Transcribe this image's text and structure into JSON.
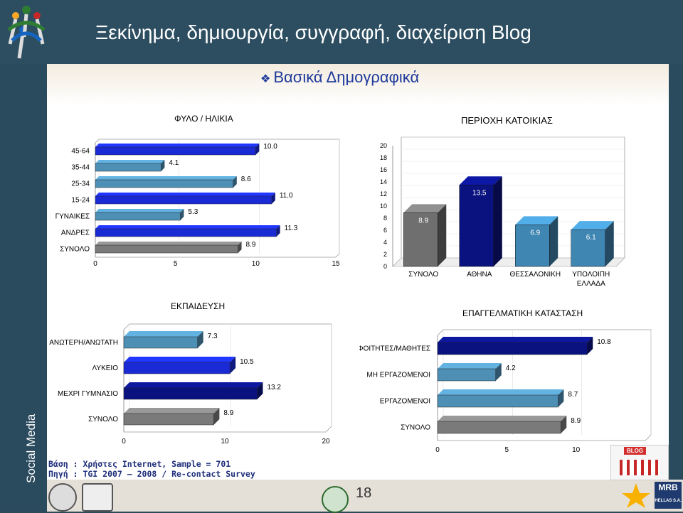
{
  "header": {
    "title": "Ξεκίνημα, δημιουργία, συγγραφή, διαχείριση Blog"
  },
  "subtitle": "Βασικά Δημογραφικά",
  "sidebar": {
    "label": "Social Media"
  },
  "footer": {
    "base": "Βάση : Χρήστες Internet, Sample = 701",
    "source": "Πηγή : TGI 2007 – 2008 / Re-contact Survey",
    "page_number": "18"
  },
  "colors": {
    "header": "#2d4e61",
    "blue": "#1a2bd6",
    "navy": "#0a1280",
    "grey": "#7a7a7a",
    "lightblue": "#4e8fb5"
  },
  "chart_data": [
    {
      "type": "bar",
      "orientation": "horizontal",
      "title": "ΦΥΛΟ / ΗΛΙΚΙΑ",
      "categories": [
        "45-64",
        "35-44",
        "25-34",
        "15-24",
        "ΓΥΝΑΙΚΕΣ",
        "ΑΝΔΡΕΣ",
        "ΣΥΝΟΛΟ"
      ],
      "values": [
        10.0,
        4.1,
        8.6,
        11.0,
        5.3,
        11.3,
        8.9
      ],
      "labels": [
        "10.0",
        "4.1",
        "8.6",
        "11.0",
        "5.3",
        "11.3",
        "8.9"
      ],
      "colors": [
        "#1a2bd6",
        "#4e8fb5",
        "#4e8fb5",
        "#1a2bd6",
        "#4e8fb5",
        "#1a2bd6",
        "#7a7a7a"
      ],
      "xlim": [
        0,
        15
      ],
      "xticks": [
        0,
        5,
        10,
        15
      ],
      "legend": "none"
    },
    {
      "type": "bar",
      "orientation": "vertical",
      "title": "ΠΕΡΙΟΧΗ ΚΑΤΟΙΚΙΑΣ",
      "categories": [
        "ΣΥΝΟΛΟ",
        "ΑΘΗΝΑ",
        "ΘΕΣΣΑΛΟΝΙΚΗ",
        "ΥΠΟΛΟΙΠΗ ΕΛΛΑΔΑ"
      ],
      "values": [
        8.9,
        13.5,
        6.9,
        6.1
      ],
      "labels": [
        "8.9",
        "13.5",
        "6.9",
        "6.1"
      ],
      "colors": [
        "#6f6f6f",
        "#0a1280",
        "#3f86b3",
        "#3f86b3"
      ],
      "ylim": [
        0,
        20
      ],
      "yticks": [
        0,
        2,
        4,
        6,
        8,
        10,
        12,
        14,
        16,
        18,
        20
      ],
      "legend": "none"
    },
    {
      "type": "bar",
      "orientation": "horizontal",
      "title": "ΕΚΠΑΙΔΕΥΣΗ",
      "categories": [
        "ΑΝΩΤΕΡΗ/ΑΝΩΤΑΤΗ",
        "ΛΥΚΕΙΟ",
        "ΜΕΧΡΙ ΓΥΜΝΑΣΙΟ",
        "ΣΥΝΟΛΟ"
      ],
      "values": [
        7.3,
        10.5,
        13.2,
        8.9
      ],
      "labels": [
        "7.3",
        "10.5",
        "13.2",
        "8.9"
      ],
      "colors": [
        "#4e8fb5",
        "#1a2bd6",
        "#0a1280",
        "#7a7a7a"
      ],
      "xlim": [
        0,
        20
      ],
      "xticks": [
        0,
        10,
        20
      ],
      "legend": "none"
    },
    {
      "type": "bar",
      "orientation": "horizontal",
      "title": "ΕΠΑΓΓΕΛΜΑΤΙΚΗ ΚΑΤΑΣΤΑΣΗ",
      "categories": [
        "ΦΟΙΤΗΤΕΣ/ΜΑΘΗΤΕΣ",
        "ΜΗ ΕΡΓΑΖΟΜΕΝΟΙ",
        "ΕΡΓΑΖΟΜΕΝΟΙ",
        "ΣΥΝΟΛΟ"
      ],
      "values": [
        10.8,
        4.2,
        8.7,
        8.9
      ],
      "labels": [
        "10.8",
        "4.2",
        "8.7",
        "8.9"
      ],
      "colors": [
        "#0a1280",
        "#4e8fb5",
        "#4e8fb5",
        "#7a7a7a"
      ],
      "xlim": [
        0,
        15
      ],
      "xticks": [
        0,
        5,
        10,
        15
      ],
      "legend": "none"
    }
  ]
}
